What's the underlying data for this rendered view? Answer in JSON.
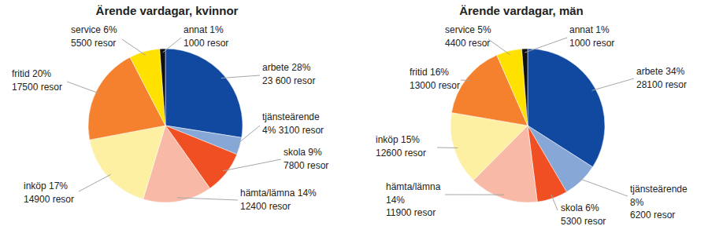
{
  "chart_data": [
    {
      "type": "pie",
      "title": "Ärende vardagar, kvinnor",
      "categories": [
        "arbete",
        "tjänsteärende",
        "skola",
        "hämta/lämna",
        "inköp",
        "fritid",
        "service",
        "annat"
      ],
      "values": [
        23600,
        3100,
        7800,
        12400,
        14900,
        17500,
        5500,
        1000
      ],
      "value_labels": [
        "23 600 resor",
        "3100 resor",
        "7800 resor",
        "12400 resor",
        "14900 resor",
        "17500 resor",
        "5500 resor",
        "1000 resor"
      ],
      "percentages": [
        28,
        4,
        9,
        14,
        17,
        20,
        6,
        1
      ],
      "percentage_labels": [
        "28%",
        "4%",
        "9%",
        "14%",
        "17%",
        "20%",
        "6%",
        "1%"
      ],
      "colors": [
        "#1148a0",
        "#87a7d6",
        "#f04f24",
        "#f8b9a6",
        "#fdf0a3",
        "#f5802d",
        "#ffe100",
        "#111111"
      ],
      "data_labels": true
    },
    {
      "type": "pie",
      "title": "Ärende vardagar, män",
      "categories": [
        "arbete",
        "tjänsteärende",
        "skola",
        "hämta/lämna",
        "inköp",
        "fritid",
        "service",
        "annat"
      ],
      "values": [
        28100,
        6200,
        5300,
        11900,
        12600,
        13000,
        4400,
        1000
      ],
      "value_labels": [
        "28100 resor",
        "6200 resor",
        "5300 resor",
        "11900 resor",
        "12600 resor",
        "13000 resor",
        "4400 resor",
        "1000 resor"
      ],
      "percentages": [
        34,
        8,
        6,
        14,
        15,
        16,
        5,
        1
      ],
      "percentage_labels": [
        "34%",
        "8%",
        "6%",
        "14%",
        "15%",
        "16%",
        "5%",
        "1%"
      ],
      "colors": [
        "#1148a0",
        "#87a7d6",
        "#f04f24",
        "#f8b9a6",
        "#fdf0a3",
        "#f5802d",
        "#ffe100",
        "#111111"
      ],
      "data_labels": true
    }
  ]
}
